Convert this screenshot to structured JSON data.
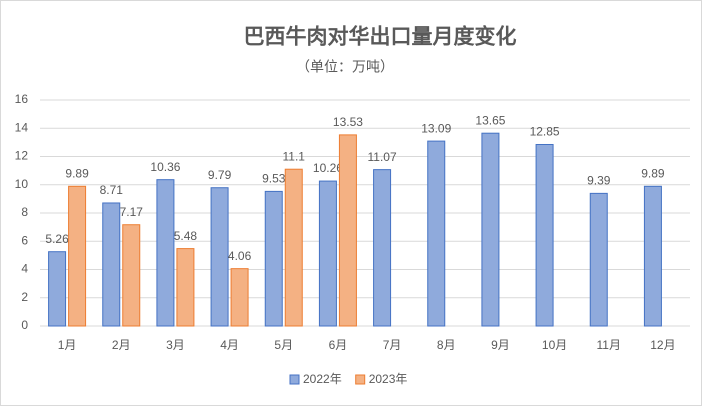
{
  "chart_data": {
    "type": "bar",
    "title": "巴西牛肉对华出口量月度变化",
    "subtitle": "（单位：万吨）",
    "categories": [
      "1月",
      "2月",
      "3月",
      "4月",
      "5月",
      "6月",
      "7月",
      "8月",
      "9月",
      "10月",
      "11月",
      "12月"
    ],
    "series": [
      {
        "name": "2022年",
        "color": "#8FAADC",
        "values": [
          5.26,
          8.71,
          10.36,
          9.79,
          9.53,
          10.26,
          11.07,
          13.09,
          13.65,
          12.85,
          9.39,
          9.89
        ]
      },
      {
        "name": "2023年",
        "color": "#F4B183",
        "values": [
          9.89,
          7.17,
          5.48,
          4.06,
          11.1,
          13.53,
          null,
          null,
          null,
          null,
          null,
          null
        ]
      }
    ],
    "ylim": [
      0,
      16
    ],
    "yticks": [
      0,
      2,
      4,
      6,
      8,
      10,
      12,
      14,
      16
    ],
    "grid": true,
    "legend": "bottom"
  }
}
